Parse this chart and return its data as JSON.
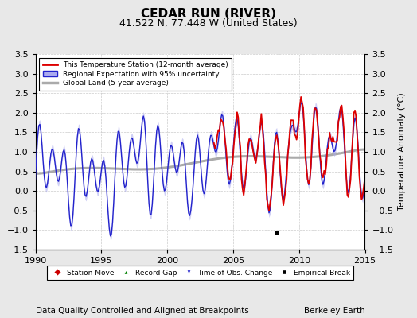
{
  "title": "CEDAR RUN (RIVER)",
  "subtitle": "41.522 N, 77.448 W (United States)",
  "ylabel": "Temperature Anomaly (°C)",
  "xlabel_left": "Data Quality Controlled and Aligned at Breakpoints",
  "xlabel_right": "Berkeley Earth",
  "ylim": [
    -1.5,
    3.5
  ],
  "xlim": [
    1990,
    2015
  ],
  "yticks": [
    -1.5,
    -1.0,
    -0.5,
    0.0,
    0.5,
    1.0,
    1.5,
    2.0,
    2.5,
    3.0,
    3.5
  ],
  "xticks": [
    1990,
    1995,
    2000,
    2005,
    2010,
    2015
  ],
  "empirical_break_x": 2008.3,
  "empirical_break_y": -1.07,
  "background_color": "#e8e8e8",
  "plot_bg_color": "#ffffff",
  "grid_color": "#cccccc",
  "station_line_color": "#dd0000",
  "regional_line_color": "#2222cc",
  "regional_fill_color": "#aaaaee",
  "global_line_color": "#aaaaaa",
  "title_fontsize": 11,
  "subtitle_fontsize": 9,
  "tick_fontsize": 8,
  "label_fontsize": 7.5
}
